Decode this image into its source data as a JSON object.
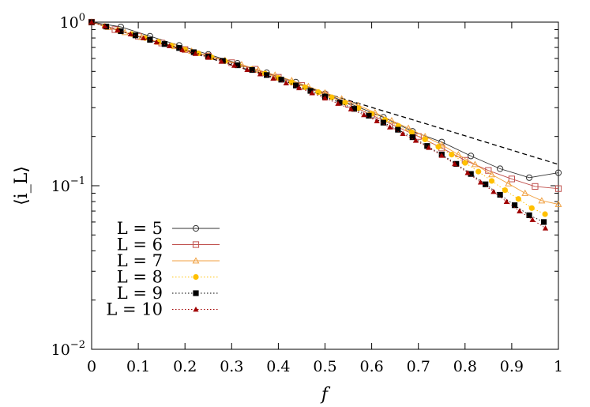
{
  "chart_data": {
    "type": "line",
    "title": "",
    "xlabel": "f",
    "ylabel": "⟨i_L⟩",
    "xlim": [
      0,
      1
    ],
    "ylim": [
      0.01,
      1
    ],
    "yscale": "log",
    "grid": false,
    "legend_position": "bottom-left",
    "xticks": [
      "0",
      "0.1",
      "0.2",
      "0.3",
      "0.4",
      "0.5",
      "0.6",
      "0.7",
      "0.8",
      "0.9",
      "1"
    ],
    "yticks": [
      {
        "base": "10",
        "exp": "0"
      },
      {
        "base": "10",
        "exp": "−1"
      },
      {
        "base": "10",
        "exp": "−2"
      }
    ],
    "reference_curve": {
      "style": "dashed",
      "color": "#000000",
      "x": [
        0,
        0.1,
        0.2,
        0.3,
        0.4,
        0.5,
        0.6,
        0.7,
        0.8,
        0.9,
        1.0
      ],
      "y": [
        1.0,
        0.818,
        0.67,
        0.548,
        0.449,
        0.368,
        0.301,
        0.247,
        0.202,
        0.165,
        0.135
      ]
    },
    "series": [
      {
        "name": "L = 5",
        "color": "#333333",
        "marker": "circle-open",
        "line": "solid",
        "x": [
          0,
          0.0625,
          0.125,
          0.1875,
          0.25,
          0.3125,
          0.375,
          0.4375,
          0.5,
          0.5625,
          0.625,
          0.6875,
          0.75,
          0.8125,
          0.875,
          0.9375,
          1.0
        ],
        "y": [
          1.0,
          0.935,
          0.82,
          0.72,
          0.635,
          0.56,
          0.49,
          0.43,
          0.365,
          0.31,
          0.262,
          0.215,
          0.185,
          0.152,
          0.127,
          0.112,
          0.12
        ]
      },
      {
        "name": "L = 6",
        "color": "#c0504d",
        "marker": "square-open",
        "line": "solid",
        "x": [
          0,
          0.05,
          0.1,
          0.15,
          0.2,
          0.25,
          0.3,
          0.35,
          0.4,
          0.45,
          0.5,
          0.55,
          0.6,
          0.65,
          0.7,
          0.75,
          0.8,
          0.85,
          0.9,
          0.95,
          1.0
        ],
        "y": [
          1.0,
          0.9,
          0.82,
          0.745,
          0.68,
          0.62,
          0.565,
          0.515,
          0.46,
          0.41,
          0.36,
          0.315,
          0.27,
          0.232,
          0.2,
          0.17,
          0.143,
          0.124,
          0.11,
          0.099,
          0.096
        ]
      },
      {
        "name": "L = 7",
        "color": "#f0a040",
        "marker": "triangle-open",
        "line": "solid",
        "x": [
          0,
          0.0357,
          0.0714,
          0.1071,
          0.1429,
          0.1786,
          0.2143,
          0.25,
          0.2857,
          0.3214,
          0.3571,
          0.3929,
          0.4286,
          0.4643,
          0.5,
          0.5357,
          0.5714,
          0.6071,
          0.6429,
          0.6786,
          0.7143,
          0.75,
          0.7857,
          0.8214,
          0.8571,
          0.8929,
          0.9286,
          0.9643,
          1.0
        ],
        "y": [
          1.0,
          0.93,
          0.865,
          0.81,
          0.755,
          0.71,
          0.665,
          0.625,
          0.585,
          0.55,
          0.51,
          0.475,
          0.44,
          0.405,
          0.37,
          0.34,
          0.31,
          0.28,
          0.25,
          0.225,
          0.2,
          0.178,
          0.155,
          0.135,
          0.117,
          0.103,
          0.09,
          0.081,
          0.077
        ]
      },
      {
        "name": "L = 8",
        "color": "#ffc000",
        "marker": "circle-filled",
        "line": "dotted",
        "x": [
          0,
          0.0286,
          0.0571,
          0.0857,
          0.1143,
          0.1429,
          0.1714,
          0.2,
          0.2286,
          0.2571,
          0.2857,
          0.3143,
          0.3429,
          0.3714,
          0.4,
          0.4286,
          0.4571,
          0.4857,
          0.5143,
          0.5429,
          0.5714,
          0.6,
          0.6286,
          0.6571,
          0.6857,
          0.7143,
          0.7429,
          0.7714,
          0.8,
          0.8286,
          0.8571,
          0.8857,
          0.9143,
          0.9429,
          0.9714
        ],
        "y": [
          1.0,
          0.945,
          0.893,
          0.845,
          0.8,
          0.758,
          0.718,
          0.68,
          0.645,
          0.61,
          0.578,
          0.546,
          0.515,
          0.485,
          0.456,
          0.428,
          0.4,
          0.373,
          0.347,
          0.322,
          0.298,
          0.275,
          0.253,
          0.232,
          0.212,
          0.192,
          0.173,
          0.155,
          0.138,
          0.122,
          0.107,
          0.094,
          0.083,
          0.073,
          0.067
        ]
      },
      {
        "name": "L = 9",
        "color": "#000000",
        "marker": "square-filled",
        "line": "dotted",
        "x": [
          0,
          0.0312,
          0.0625,
          0.0938,
          0.125,
          0.1562,
          0.1875,
          0.2188,
          0.25,
          0.2812,
          0.3125,
          0.3438,
          0.375,
          0.4062,
          0.4375,
          0.4688,
          0.5,
          0.5312,
          0.5625,
          0.5938,
          0.625,
          0.6562,
          0.6875,
          0.7188,
          0.75,
          0.7812,
          0.8125,
          0.8438,
          0.875,
          0.9062,
          0.9375,
          0.9688
        ],
        "y": [
          1.0,
          0.94,
          0.88,
          0.83,
          0.78,
          0.735,
          0.695,
          0.655,
          0.615,
          0.58,
          0.545,
          0.51,
          0.475,
          0.445,
          0.41,
          0.38,
          0.35,
          0.322,
          0.295,
          0.268,
          0.243,
          0.22,
          0.198,
          0.175,
          0.155,
          0.136,
          0.118,
          0.102,
          0.088,
          0.076,
          0.066,
          0.06
        ]
      },
      {
        "name": "L = 10",
        "color": "#a00000",
        "marker": "triangle-filled",
        "line": "dotted",
        "x": [
          0,
          0.0278,
          0.0556,
          0.0833,
          0.1111,
          0.1389,
          0.1667,
          0.1944,
          0.2222,
          0.25,
          0.2778,
          0.3056,
          0.3333,
          0.3611,
          0.3889,
          0.4167,
          0.4444,
          0.4722,
          0.5,
          0.5278,
          0.5556,
          0.5833,
          0.6111,
          0.6389,
          0.6667,
          0.6944,
          0.7222,
          0.75,
          0.7778,
          0.8056,
          0.8333,
          0.8611,
          0.8889,
          0.9167,
          0.9444,
          0.9722
        ],
        "y": [
          1.0,
          0.945,
          0.895,
          0.845,
          0.8,
          0.755,
          0.715,
          0.678,
          0.642,
          0.608,
          0.575,
          0.543,
          0.512,
          0.482,
          0.453,
          0.424,
          0.396,
          0.369,
          0.343,
          0.318,
          0.294,
          0.271,
          0.249,
          0.228,
          0.208,
          0.189,
          0.171,
          0.153,
          0.136,
          0.12,
          0.105,
          0.092,
          0.08,
          0.07,
          0.062,
          0.055
        ]
      }
    ]
  }
}
